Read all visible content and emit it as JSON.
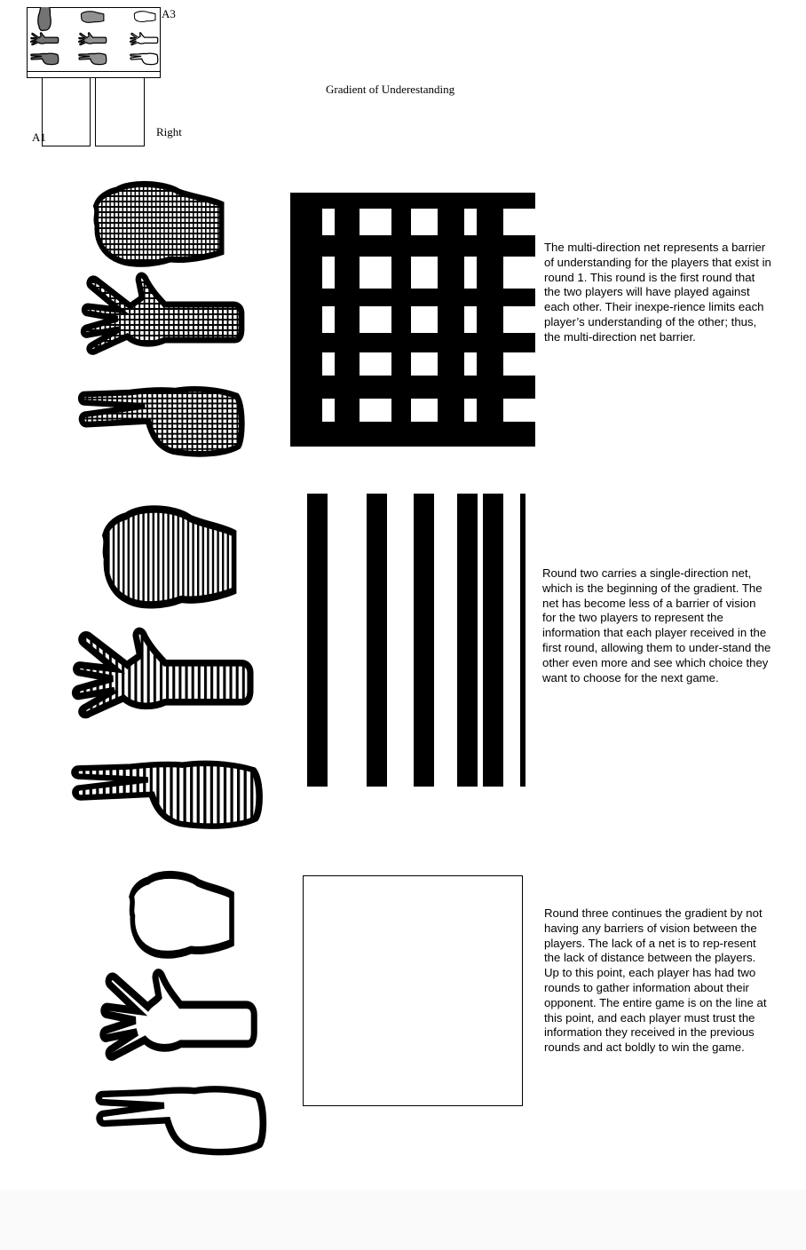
{
  "diagram": {
    "label_a3": "A3",
    "label_a1": "A1",
    "label_right": "Right"
  },
  "title": "Gradient of Underestanding",
  "rounds": [
    {
      "net": "multi-direction",
      "hands": [
        "fist-icon",
        "open-hand-icon",
        "two-finger-hand-icon"
      ],
      "description": "The multi-direction net represents a barrier of understanding for the players that exist in round 1. This round is the first round that the two players will have played against each other. Their inexpe-rience limits each player’s understanding of the other; thus, the multi-direction net barrier."
    },
    {
      "net": "single-direction",
      "hands": [
        "fist-icon",
        "open-hand-icon",
        "two-finger-hand-icon"
      ],
      "description": "Round two carries a  single-direction net, which is the beginning of the gradient. The net has become less of a barrier of vision for the two players to represent the information that each player received in the first round, allowing them to under-stand the other even more and see which choice they want to choose for the next game."
    },
    {
      "net": "none",
      "hands": [
        "fist-icon",
        "open-hand-icon",
        "two-finger-hand-icon"
      ],
      "description": "Round three continues the gradient by not having any barriers of vision between the players. The lack of a net is to rep-resent the lack of distance between the players. Up to this point, each player has had two rounds to gather information about their opponent. The entire game is on the line at this point, and each player must trust the information they received in the previous rounds and act boldly to win the game."
    }
  ]
}
